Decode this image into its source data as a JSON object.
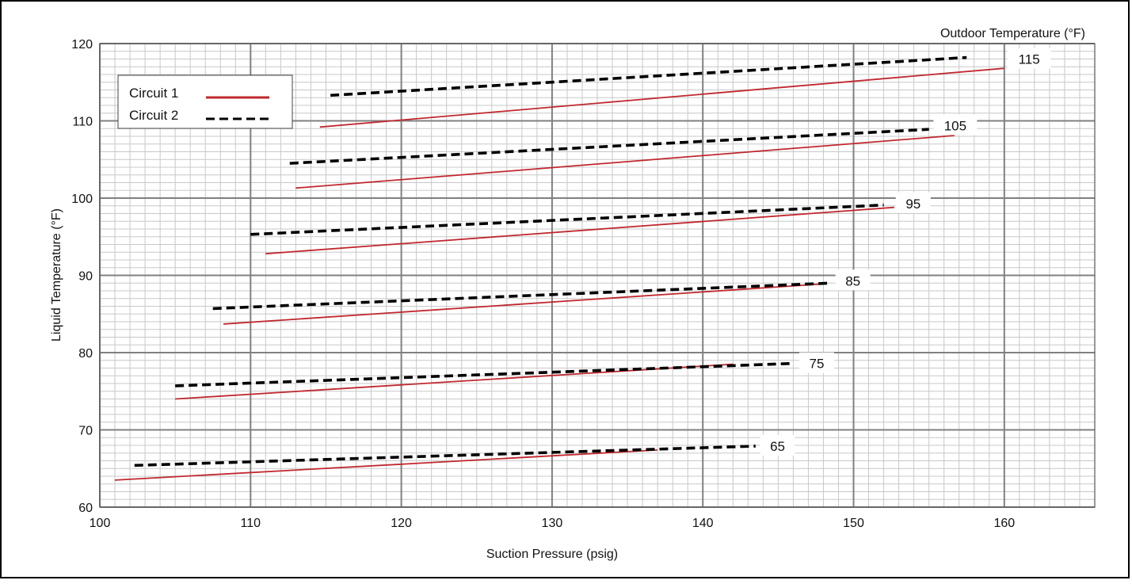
{
  "chart_data": {
    "type": "line",
    "title": "",
    "xlabel": "Suction Pressure (psig)",
    "ylabel": "Liquid Temperature (°F)",
    "top_right_label": "Outdoor Temperature (°F)",
    "xlim": [
      100,
      166
    ],
    "ylim": [
      60,
      120
    ],
    "xticks": [
      100,
      110,
      120,
      130,
      140,
      150,
      160
    ],
    "yticks": [
      60,
      70,
      80,
      90,
      100,
      110,
      120
    ],
    "grid": true,
    "legend_position": "top-left",
    "legend": [
      {
        "name": "Circuit 1",
        "style": "solid",
        "color": "#c0282d"
      },
      {
        "name": "Circuit 2",
        "style": "dashed",
        "color": "#000000"
      }
    ],
    "series": [
      {
        "circuit": "Circuit 1",
        "outdoor_temp": "65",
        "x": [
          101,
          137
        ],
        "y": [
          63.5,
          67.4
        ]
      },
      {
        "circuit": "Circuit 2",
        "outdoor_temp": "65",
        "x": [
          102.3,
          143.5
        ],
        "y": [
          65.4,
          67.9
        ]
      },
      {
        "circuit": "Circuit 1",
        "outdoor_temp": "75",
        "x": [
          105,
          142
        ],
        "y": [
          74.0,
          78.5
        ]
      },
      {
        "circuit": "Circuit 2",
        "outdoor_temp": "75",
        "x": [
          105,
          146
        ],
        "y": [
          75.7,
          78.6
        ]
      },
      {
        "circuit": "Circuit 1",
        "outdoor_temp": "85",
        "x": [
          108.2,
          148
        ],
        "y": [
          83.7,
          88.9
        ]
      },
      {
        "circuit": "Circuit 2",
        "outdoor_temp": "85",
        "x": [
          107.5,
          148.5
        ],
        "y": [
          85.7,
          89.0
        ]
      },
      {
        "circuit": "Circuit 1",
        "outdoor_temp": "95",
        "x": [
          111,
          152.7
        ],
        "y": [
          92.8,
          98.8
        ]
      },
      {
        "circuit": "Circuit 2",
        "outdoor_temp": "95",
        "x": [
          110,
          152
        ],
        "y": [
          95.3,
          99.1
        ]
      },
      {
        "circuit": "Circuit 1",
        "outdoor_temp": "105",
        "x": [
          113,
          156.7
        ],
        "y": [
          101.3,
          108.1
        ]
      },
      {
        "circuit": "Circuit 2",
        "outdoor_temp": "105",
        "x": [
          112.6,
          155
        ],
        "y": [
          104.5,
          108.9
        ]
      },
      {
        "circuit": "Circuit 1",
        "outdoor_temp": "115",
        "x": [
          114.6,
          160
        ],
        "y": [
          109.2,
          116.8
        ]
      },
      {
        "circuit": "Circuit 2",
        "outdoor_temp": "115",
        "x": [
          115.3,
          157.5
        ],
        "y": [
          113.3,
          118.2
        ]
      }
    ],
    "curve_labels": [
      {
        "text": "65",
        "x": 143.8,
        "y": 67.9
      },
      {
        "text": "75",
        "x": 146.4,
        "y": 78.6
      },
      {
        "text": "85",
        "x": 148.8,
        "y": 89.3
      },
      {
        "text": "95",
        "x": 152.8,
        "y": 99.3
      },
      {
        "text": "105",
        "x": 155.3,
        "y": 109.4
      },
      {
        "text": "115",
        "x": 160.2,
        "y": 118.0
      }
    ]
  },
  "colors": {
    "circuit1": "#c0282d",
    "circuit2": "#000000",
    "grid_major": "#808080",
    "grid_minor": "#c8c8c8",
    "frame": "#000000"
  }
}
